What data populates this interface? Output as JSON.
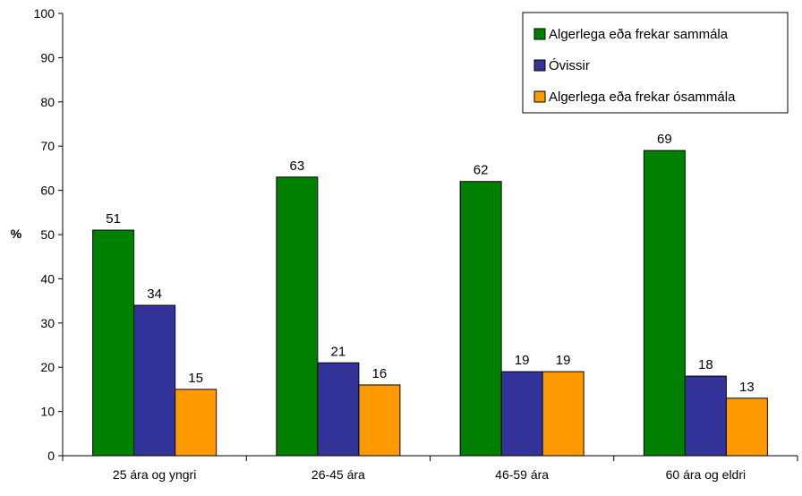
{
  "chart_data": {
    "type": "bar",
    "title": "",
    "xlabel": "",
    "ylabel": "%",
    "ylim": [
      0,
      100
    ],
    "yticks": [
      0,
      10,
      20,
      30,
      40,
      50,
      60,
      70,
      80,
      90,
      100
    ],
    "grid": false,
    "legend_position": "top-right",
    "categories": [
      "25 ára og yngri",
      "26-45 ára",
      "46-59 ára",
      "60 ára og eldri"
    ],
    "series": [
      {
        "name": "Algerlega eða frekar sammála",
        "color": "#008000",
        "values": [
          51,
          63,
          62,
          69
        ]
      },
      {
        "name": "Óvissir",
        "color": "#333399",
        "values": [
          34,
          21,
          19,
          18
        ]
      },
      {
        "name": "Algerlega eða frekar ósammála",
        "color": "#ff9900",
        "values": [
          15,
          16,
          19,
          13
        ]
      }
    ]
  }
}
